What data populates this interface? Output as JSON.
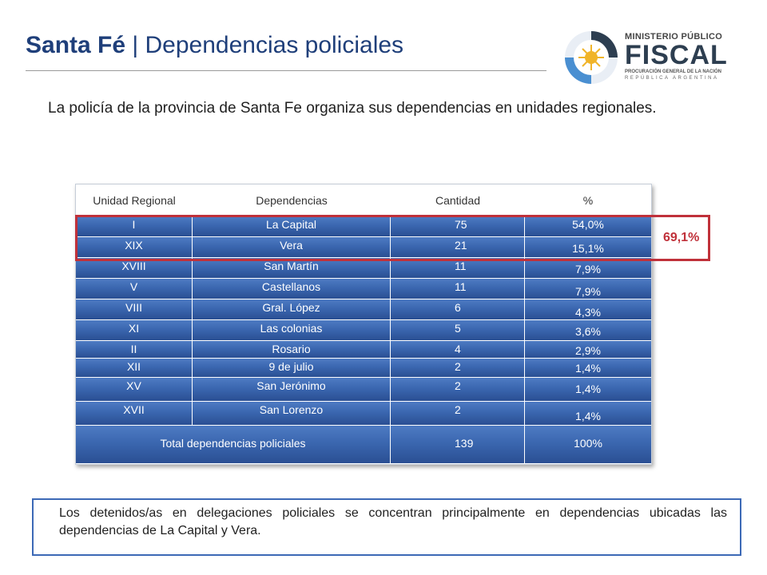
{
  "header": {
    "title_bold": "Santa Fé",
    "title_rest": " | Dependencias policiales"
  },
  "logo": {
    "line1": "MINISTERIO PÚBLICO",
    "line2": "FISCAL",
    "line3": "PROCURACIÓN GENERAL DE LA NACIÓN",
    "line4": "REPÚBLICA ARGENTINA",
    "colors": {
      "ring": "#4a8fd1",
      "sun": "#f0b429",
      "text": "#2d3e50"
    }
  },
  "intro": "La policía de la provincia de Santa Fe organiza sus dependencias en unidades regionales.",
  "table": {
    "headers": [
      "Unidad Regional",
      "Dependencias",
      "Cantidad",
      "%"
    ],
    "rows": [
      [
        "I",
        "La Capital",
        "75",
        "54,0%"
      ],
      [
        "XIX",
        "Vera",
        "21",
        "15,1%"
      ],
      [
        "XVIII",
        "San Martín",
        "11",
        "7,9%"
      ],
      [
        "V",
        "Castellanos",
        "11",
        "7,9%"
      ],
      [
        "VIII",
        "Gral. López",
        "6",
        "4,3%"
      ],
      [
        "XI",
        "Las colonias",
        "5",
        "3,6%"
      ],
      [
        "II",
        "Rosario",
        "4",
        "2,9%"
      ],
      [
        "XII",
        "9 de julio",
        "2",
        "1,4%"
      ],
      [
        "XV",
        "San Jerónimo",
        "2",
        "1,4%"
      ],
      [
        "XVII",
        "San Lorenzo",
        "2",
        "1,4%"
      ]
    ],
    "total": {
      "label": "Total dependencias policiales",
      "cantidad": "139",
      "pct": "100%"
    },
    "colors": {
      "cell": "#3b67b0",
      "highlight": "#c0313a"
    }
  },
  "highlight_label": "69,1%",
  "note": "Los detenidos/as en delegaciones policiales se concentran principalmente en dependencias ubicadas las dependencias de La Capital y Vera."
}
